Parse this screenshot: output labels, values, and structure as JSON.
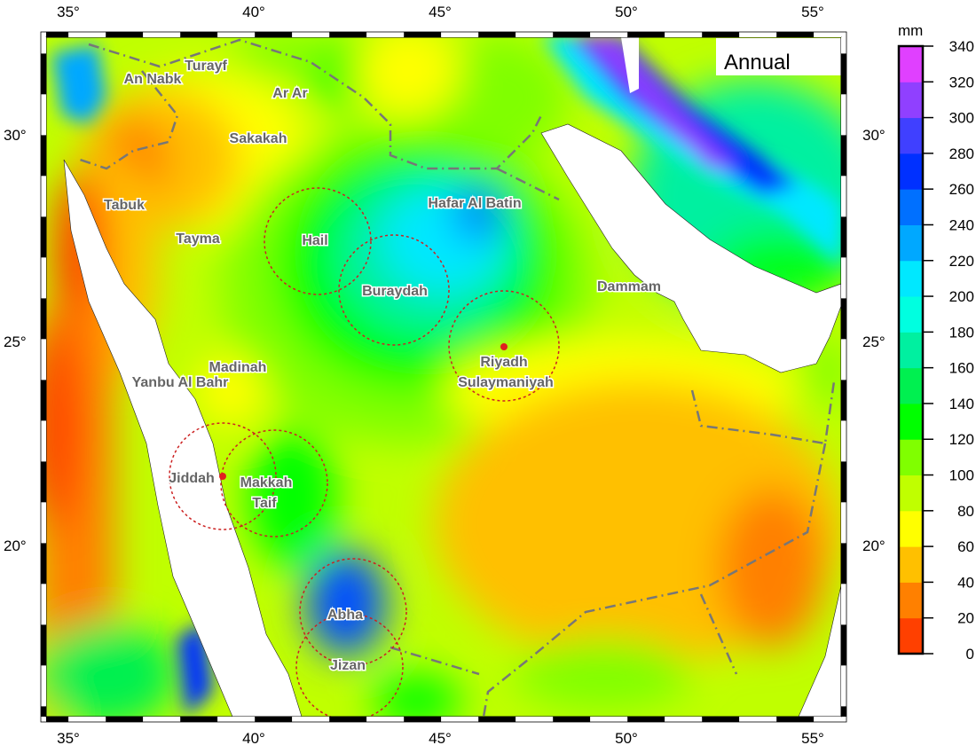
{
  "map": {
    "title": "Annual",
    "lon_labels": [
      "35°",
      "40°",
      "45°",
      "50°",
      "55°"
    ],
    "lat_labels": [
      "30°",
      "25°",
      "20°"
    ],
    "cities": [
      {
        "name": "Turayf"
      },
      {
        "name": "An Nabk"
      },
      {
        "name": "Ar Ar"
      },
      {
        "name": "Sakakah"
      },
      {
        "name": "Tabuk"
      },
      {
        "name": "Tayma"
      },
      {
        "name": "Hail"
      },
      {
        "name": "Hafar Al Batin"
      },
      {
        "name": "Buraydah"
      },
      {
        "name": "Dammam"
      },
      {
        "name": "Riyadh"
      },
      {
        "name": "Sulaymaniyah"
      },
      {
        "name": "Madinah"
      },
      {
        "name": "Yanbu Al Bahr"
      },
      {
        "name": "Jiddah"
      },
      {
        "name": "Makkah"
      },
      {
        "name": "Taif"
      },
      {
        "name": "Abha"
      },
      {
        "name": "Jizan"
      }
    ],
    "circle_color": "#cc2222",
    "border_color": "#777777"
  },
  "colorbar": {
    "unit": "mm",
    "ticks": [
      "0",
      "20",
      "40",
      "60",
      "80",
      "100",
      "120",
      "140",
      "160",
      "180",
      "200",
      "220",
      "240",
      "260",
      "280",
      "300",
      "320",
      "340"
    ],
    "colors": [
      "#ff4000",
      "#ff8000",
      "#ffc000",
      "#ffff00",
      "#c0ff00",
      "#80ff00",
      "#00ff00",
      "#00f050",
      "#00f0a0",
      "#00ffe0",
      "#00e8ff",
      "#00a8ff",
      "#0070ff",
      "#0030ff",
      "#4040ff",
      "#9040ff",
      "#e040ff"
    ]
  }
}
